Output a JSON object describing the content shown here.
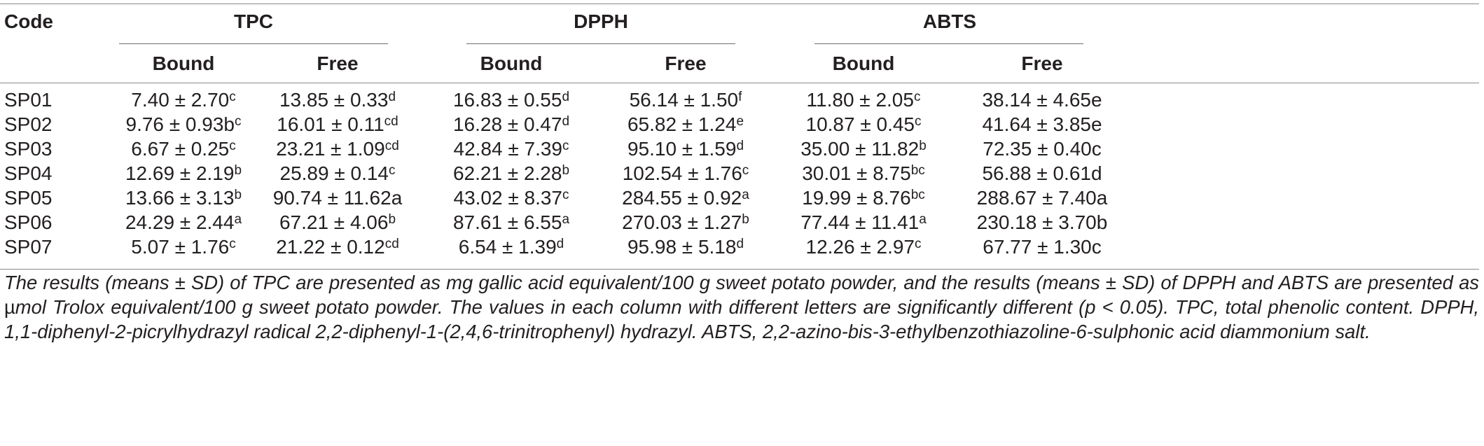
{
  "table": {
    "code_header": "Code",
    "groups": [
      "TPC",
      "DPPH",
      "ABTS"
    ],
    "subheaders": [
      "Bound",
      "Free",
      "Bound",
      "Free",
      "Bound",
      "Free"
    ],
    "rows": [
      {
        "code": "SP01",
        "cells": [
          {
            "v": "7.40 ± 2.70",
            "s": "c"
          },
          {
            "v": "13.85 ± 0.33",
            "s": "d"
          },
          {
            "v": "16.83 ± 0.55",
            "s": "d"
          },
          {
            "v": "56.14 ± 1.50",
            "s": "f"
          },
          {
            "v": "11.80 ± 2.05",
            "s": "c"
          },
          {
            "v": "38.14 ± 4.65e",
            "s": ""
          }
        ]
      },
      {
        "code": "SP02",
        "cells": [
          {
            "v": "9.76 ± 0.93b",
            "s": "c"
          },
          {
            "v": "16.01 ± 0.11",
            "s": "cd"
          },
          {
            "v": "16.28 ± 0.47",
            "s": "d"
          },
          {
            "v": "65.82 ± 1.24",
            "s": "e"
          },
          {
            "v": "10.87 ± 0.45",
            "s": "c"
          },
          {
            "v": "41.64 ± 3.85e",
            "s": ""
          }
        ]
      },
      {
        "code": "SP03",
        "cells": [
          {
            "v": "6.67 ± 0.25",
            "s": "c"
          },
          {
            "v": "23.21 ± 1.09",
            "s": "cd"
          },
          {
            "v": "42.84 ± 7.39",
            "s": "c"
          },
          {
            "v": "95.10 ± 1.59",
            "s": "d"
          },
          {
            "v": "35.00 ± 11.82",
            "s": "b"
          },
          {
            "v": "72.35 ± 0.40c",
            "s": ""
          }
        ]
      },
      {
        "code": "SP04",
        "cells": [
          {
            "v": "12.69 ± 2.19",
            "s": "b"
          },
          {
            "v": "25.89 ± 0.14",
            "s": "c"
          },
          {
            "v": "62.21 ± 2.28",
            "s": "b"
          },
          {
            "v": "102.54 ± 1.76",
            "s": "c"
          },
          {
            "v": "30.01 ± 8.75",
            "s": "bc"
          },
          {
            "v": "56.88 ± 0.61d",
            "s": ""
          }
        ]
      },
      {
        "code": "SP05",
        "cells": [
          {
            "v": "13.66 ± 3.13",
            "s": "b"
          },
          {
            "v": "90.74 ± 11.62a",
            "s": ""
          },
          {
            "v": "43.02 ± 8.37",
            "s": "c"
          },
          {
            "v": "284.55 ± 0.92",
            "s": "a"
          },
          {
            "v": "19.99 ± 8.76",
            "s": "bc"
          },
          {
            "v": "288.67 ± 7.40a",
            "s": ""
          }
        ]
      },
      {
        "code": "SP06",
        "cells": [
          {
            "v": "24.29 ± 2.44",
            "s": "a"
          },
          {
            "v": "67.21 ± 4.06",
            "s": "b"
          },
          {
            "v": "87.61 ± 6.55",
            "s": "a"
          },
          {
            "v": "270.03 ± 1.27",
            "s": "b"
          },
          {
            "v": "77.44 ± 11.41",
            "s": "a"
          },
          {
            "v": "230.18 ± 3.70b",
            "s": ""
          }
        ]
      },
      {
        "code": "SP07",
        "cells": [
          {
            "v": "5.07 ± 1.76",
            "s": "c"
          },
          {
            "v": "21.22 ± 0.12",
            "s": "cd"
          },
          {
            "v": "6.54 ± 1.39",
            "s": "d"
          },
          {
            "v": "95.98 ± 5.18",
            "s": "d"
          },
          {
            "v": "12.26 ± 2.97",
            "s": "c"
          },
          {
            "v": "67.77 ± 1.30c",
            "s": ""
          }
        ]
      }
    ]
  },
  "footnote": {
    "part1": "The results (means ± SD) of TPC are presented as mg gallic acid equivalent/100 g sweet potato powder, and the results (means ± SD) of DPPH and ABTS are presented as ",
    "mu": "µ",
    "part2": "mol Trolox equivalent/100 g sweet potato powder. The values in each column with different letters are significantly different (p < 0.05). TPC, total phenolic content. DPPH, 1,1-diphenyl-2-picrylhydrazyl radical 2,2-diphenyl-1-(2,4,6-trinitrophenyl) hydrazyl. ABTS, 2,2-azino-bis-3-ethylbenzothiazoline-6-sulphonic acid diammonium salt."
  }
}
